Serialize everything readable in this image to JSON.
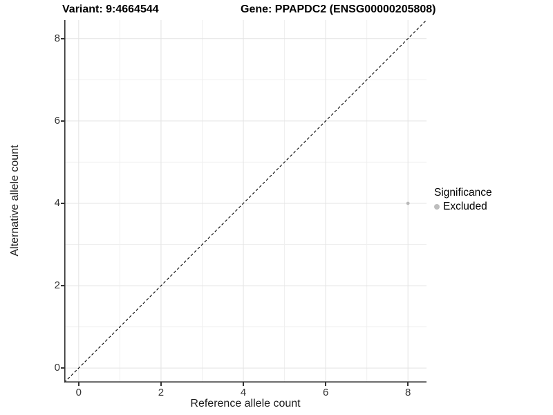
{
  "title": {
    "variant": "Variant: 9:4664544",
    "gene": "Gene: PPAPDC2 (ENSG00000205808)"
  },
  "axes": {
    "x_label": "Reference allele count",
    "y_label": "Alternative allele count"
  },
  "legend": {
    "title": "Significance",
    "items": [
      {
        "label": "Excluded",
        "color": "#bdbdbd"
      }
    ]
  },
  "colors": {
    "background": "#ffffff",
    "grid_major": "#e3e3e3",
    "grid_minor": "#efefef",
    "axis_line": "#333333",
    "tick_text": "#333333",
    "point": "#b9b9b9",
    "legend_point": "#bdbdbd",
    "dashed_line": "#000000"
  },
  "chart_data": {
    "type": "scatter",
    "title": "Variant: 9:4664544    Gene: PPAPDC2 (ENSG00000205808)",
    "xlabel": "Reference allele count",
    "ylabel": "Alternative allele count",
    "xlim": [
      -0.35,
      8.45
    ],
    "ylim": [
      -0.35,
      8.45
    ],
    "x_ticks": [
      0,
      2,
      4,
      6,
      8
    ],
    "y_ticks": [
      0,
      2,
      4,
      6,
      8
    ],
    "x_minor_ticks": [
      1,
      3,
      5,
      7
    ],
    "y_minor_ticks": [
      1,
      3,
      5,
      7
    ],
    "grid": true,
    "legend_position": "right",
    "series": [
      {
        "name": "Excluded",
        "color": "#b9b9b9",
        "points": [
          {
            "x": 8,
            "y": 4
          }
        ]
      }
    ],
    "reference_line": {
      "type": "identity",
      "slope": 1,
      "intercept": 0,
      "linetype": "dashed",
      "color": "#000000"
    }
  }
}
